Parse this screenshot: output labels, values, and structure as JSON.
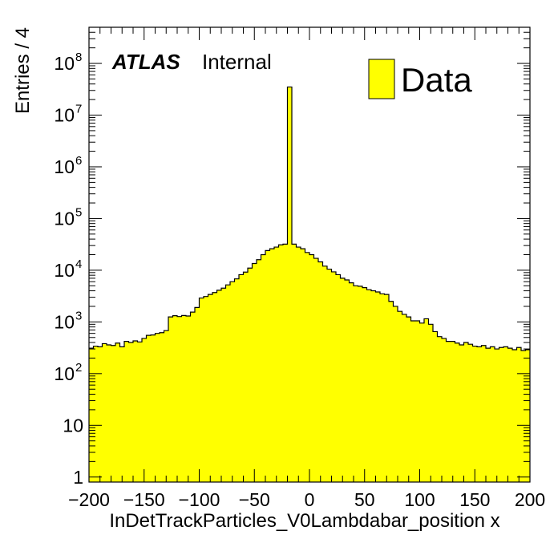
{
  "chart_data": {
    "type": "bar",
    "xlabel": "InDetTrackParticles_V0Lambdabar_position x",
    "ylabel": "Entries / 4",
    "xlim": [
      -200,
      200
    ],
    "ylim": [
      0.8,
      500000000
    ],
    "y_scale": "log",
    "x_ticks": [
      -200,
      -150,
      -100,
      -50,
      0,
      50,
      100,
      150,
      200
    ],
    "x_tick_labels": [
      "−200",
      "−150",
      "−100",
      "−50",
      "0",
      "50",
      "100",
      "150",
      "200"
    ],
    "y_ticks": [
      {
        "value": 1,
        "base": "1",
        "exp": ""
      },
      {
        "value": 10,
        "base": "10",
        "exp": ""
      },
      {
        "value": 100,
        "base": "10",
        "exp": "2"
      },
      {
        "value": 1000,
        "base": "10",
        "exp": "3"
      },
      {
        "value": 10000,
        "base": "10",
        "exp": "4"
      },
      {
        "value": 100000,
        "base": "10",
        "exp": "5"
      },
      {
        "value": 1000000,
        "base": "10",
        "exp": "6"
      },
      {
        "value": 10000000,
        "base": "10",
        "exp": "7"
      },
      {
        "value": 100000000,
        "base": "10",
        "exp": "8"
      }
    ],
    "bin_width": 4,
    "bin_start": -200,
    "fill_color": "#ffff00",
    "line_color": "#000000",
    "legend": {
      "entries": [
        "Data"
      ],
      "position": "top-right"
    },
    "label": {
      "atlas": "ATLAS",
      "status": "Internal"
    },
    "series": [
      {
        "name": "Data",
        "values": [
          310,
          340,
          330,
          380,
          360,
          350,
          390,
          330,
          420,
          400,
          430,
          410,
          480,
          550,
          560,
          600,
          620,
          680,
          1250,
          1320,
          1270,
          1330,
          1300,
          1550,
          1900,
          2900,
          3100,
          3400,
          3700,
          4100,
          4500,
          5200,
          6000,
          6800,
          8200,
          9200,
          11000,
          13500,
          16000,
          20000,
          24000,
          26000,
          28000,
          31000,
          32000,
          35000000,
          32000,
          28000,
          26000,
          22000,
          20000,
          17000,
          14500,
          12000,
          10500,
          9300,
          8200,
          7000,
          6500,
          5700,
          5000,
          4900,
          4600,
          4200,
          4000,
          3800,
          3500,
          3400,
          2500,
          2000,
          1600,
          1400,
          1250,
          1050,
          1050,
          950,
          1150,
          900,
          650,
          520,
          480,
          420,
          420,
          390,
          360,
          400,
          370,
          340,
          330,
          350,
          310,
          330,
          300,
          320,
          330,
          310,
          290,
          320,
          280,
          290
        ]
      }
    ]
  }
}
